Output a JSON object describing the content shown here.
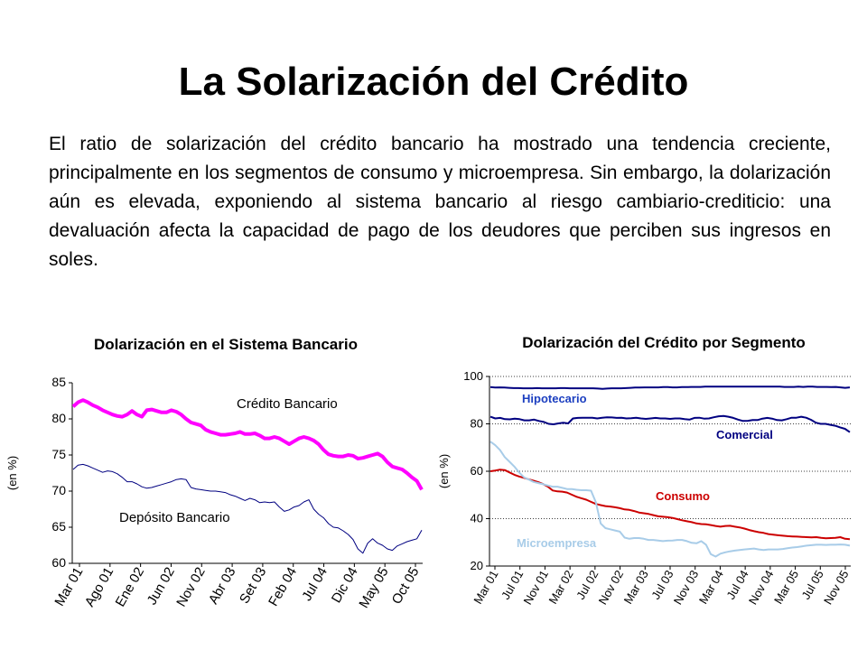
{
  "slide": {
    "title": "La Solarización del Crédito",
    "body": "El ratio de solarización del crédito bancario ha mostrado una tendencia creciente, principalmente en los segmentos de consumo y microempresa. Sin embargo, la dolarización aún es elevada, exponiendo al sistema bancario al riesgo cambiario-crediticio: una devaluación afecta la capacidad de pago de los deudores que perciben sus ingresos en soles."
  },
  "chart_data": [
    {
      "type": "line",
      "title": "Dolarización en el Sistema Bancario",
      "ylabel": "(en %)",
      "ylim": [
        60,
        85
      ],
      "yticks": [
        60,
        65,
        70,
        75,
        80,
        85
      ],
      "grid": false,
      "x_tick_labels": [
        "Mar 01",
        "Ago 01",
        "Ene 02",
        "Jun 02",
        "Nov 02",
        "Abr 03",
        "Set 03",
        "Feb 04",
        "Jul 04",
        "Dic 04",
        "May 05",
        "Oct 05"
      ],
      "series": [
        {
          "name": "Crédito Bancario",
          "color": "#ff00ff",
          "values": [
            81.7,
            82.3,
            82.6,
            82.3,
            81.9,
            81.6,
            81.2,
            80.9,
            80.6,
            80.4,
            80.3,
            80.6,
            81.1,
            80.6,
            80.3,
            81.2,
            81.3,
            81.1,
            80.9,
            80.9,
            81.2,
            81.0,
            80.6,
            80.0,
            79.5,
            79.3,
            79.1,
            78.5,
            78.2,
            78.0,
            77.8,
            77.8,
            77.9,
            78.0,
            78.2,
            77.9,
            77.9,
            78.0,
            77.7,
            77.3,
            77.3,
            77.5,
            77.3,
            76.9,
            76.5,
            76.9,
            77.3,
            77.5,
            77.3,
            77.0,
            76.5,
            75.7,
            75.1,
            74.9,
            74.8,
            74.8,
            75.0,
            74.9,
            74.5,
            74.6,
            74.8,
            75.0,
            75.2,
            74.8,
            74.0,
            73.4,
            73.2,
            73.0,
            72.5,
            71.9,
            71.4,
            70.2
          ],
          "label": "Crédito Bancario"
        },
        {
          "name": "Depósito Bancario",
          "color": "#000080",
          "values": [
            73.0,
            73.6,
            73.7,
            73.5,
            73.2,
            72.9,
            72.6,
            72.8,
            72.7,
            72.4,
            71.9,
            71.3,
            71.3,
            71.0,
            70.6,
            70.4,
            70.5,
            70.7,
            70.9,
            71.1,
            71.3,
            71.6,
            71.7,
            71.6,
            70.5,
            70.3,
            70.2,
            70.1,
            70.0,
            70.0,
            69.9,
            69.8,
            69.5,
            69.3,
            69.0,
            68.7,
            69.0,
            68.8,
            68.4,
            68.5,
            68.4,
            68.5,
            67.8,
            67.2,
            67.4,
            67.8,
            68.0,
            68.5,
            68.8,
            67.5,
            66.8,
            66.3,
            65.5,
            65.0,
            64.9,
            64.5,
            64.0,
            63.3,
            62.0,
            61.4,
            62.8,
            63.4,
            62.8,
            62.5,
            62.0,
            61.8,
            62.4,
            62.7,
            63.0,
            63.2,
            63.4,
            64.6
          ],
          "label": "Depósito Bancario"
        }
      ]
    },
    {
      "type": "line",
      "title": "Dolarización del Crédito por Segmento",
      "ylabel": "(en %)",
      "ylim": [
        20,
        100
      ],
      "yticks": [
        20,
        40,
        60,
        80,
        100
      ],
      "grid": true,
      "x_tick_labels": [
        "Mar 01",
        "Jul 01",
        "Nov 01",
        "Mar 02",
        "Jul 02",
        "Nov 02",
        "Mar 03",
        "Jul 03",
        "Nov 03",
        "Mar 04",
        "Jul 04",
        "Nov 04",
        "Mar 05",
        "Jul 05",
        "Nov 05"
      ],
      "series": [
        {
          "name": "Hipotecario",
          "color": "#000080",
          "values": [
            95.5,
            95.3,
            95.4,
            95.3,
            95.2,
            95.1,
            95.1,
            95.0,
            95.0,
            95.0,
            95.1,
            95.0,
            95.0,
            95.0,
            95.0,
            95.1,
            95.1,
            95.0,
            95.0,
            95.0,
            95.0,
            95.0,
            95.0,
            94.9,
            94.8,
            94.9,
            95.0,
            95.0,
            95.0,
            95.1,
            95.2,
            95.3,
            95.3,
            95.4,
            95.4,
            95.4,
            95.4,
            95.5,
            95.5,
            95.4,
            95.4,
            95.5,
            95.5,
            95.6,
            95.6,
            95.6,
            95.7,
            95.7,
            95.7,
            95.7,
            95.7,
            95.7,
            95.7,
            95.7,
            95.7,
            95.7,
            95.7,
            95.7,
            95.7,
            95.7,
            95.7,
            95.7,
            95.7,
            95.6,
            95.6,
            95.6,
            95.7,
            95.6,
            95.7,
            95.7,
            95.6,
            95.6,
            95.6,
            95.5,
            95.6,
            95.4,
            95.2,
            95.4
          ],
          "label": "Hipotecario"
        },
        {
          "name": "Comercial",
          "color": "#000080",
          "values": [
            83.0,
            82.3,
            82.5,
            82.0,
            81.9,
            82.2,
            82.0,
            81.5,
            81.5,
            81.8,
            81.2,
            80.8,
            80.0,
            79.8,
            80.2,
            80.5,
            80.2,
            82.3,
            82.5,
            82.6,
            82.6,
            82.6,
            82.3,
            82.6,
            82.8,
            82.7,
            82.5,
            82.6,
            82.3,
            82.4,
            82.6,
            82.3,
            82.1,
            82.3,
            82.5,
            82.3,
            82.3,
            82.1,
            82.3,
            82.3,
            82.0,
            81.8,
            82.5,
            82.6,
            82.2,
            82.3,
            82.8,
            83.2,
            83.3,
            83.0,
            82.5,
            81.8,
            81.2,
            81.3,
            81.6,
            81.6,
            82.2,
            82.5,
            82.2,
            81.6,
            81.5,
            82.0,
            82.6,
            82.6,
            83.0,
            82.6,
            81.7,
            80.5,
            80.0,
            80.0,
            79.6,
            79.2,
            78.5,
            77.9,
            76.5
          ],
          "label": "Comercial"
        },
        {
          "name": "Consumo",
          "color": "#cc0000",
          "values": [
            60.0,
            60.3,
            60.7,
            60.5,
            59.5,
            58.5,
            57.8,
            57.2,
            56.6,
            56.0,
            55.4,
            54.6,
            53.5,
            51.9,
            51.5,
            51.4,
            51.0,
            50.1,
            49.2,
            48.6,
            48.0,
            47.1,
            46.2,
            45.7,
            45.3,
            45.1,
            44.8,
            44.4,
            43.9,
            43.7,
            43.2,
            42.6,
            42.3,
            42.0,
            41.5,
            41.0,
            40.8,
            40.6,
            40.3,
            39.8,
            39.3,
            38.9,
            38.5,
            38.0,
            37.7,
            37.6,
            37.3,
            36.9,
            36.6,
            36.9,
            37.0,
            36.6,
            36.3,
            35.8,
            35.2,
            34.7,
            34.3,
            34.0,
            33.5,
            33.2,
            33.0,
            32.8,
            32.6,
            32.5,
            32.4,
            32.3,
            32.2,
            32.1,
            32.2,
            31.9,
            31.7,
            31.8,
            31.9,
            32.2,
            31.5,
            31.3
          ],
          "label": "Consumo"
        },
        {
          "name": "Microempresa",
          "color": "#a8cce8",
          "values": [
            72.5,
            71.0,
            69.0,
            66.0,
            64.0,
            62.0,
            59.5,
            57.5,
            56.5,
            55.5,
            55.0,
            54.5,
            54.0,
            53.5,
            53.5,
            53.0,
            52.5,
            52.5,
            52.2,
            52.0,
            52.0,
            51.8,
            47.0,
            38.0,
            36.0,
            35.5,
            35.0,
            34.5,
            32.0,
            31.5,
            31.8,
            31.8,
            31.5,
            31.0,
            31.0,
            30.8,
            30.5,
            30.7,
            30.8,
            31.0,
            31.0,
            30.5,
            29.8,
            29.6,
            30.5,
            29.0,
            25.0,
            24.0,
            25.2,
            25.8,
            26.2,
            26.5,
            26.8,
            27.0,
            27.2,
            27.4,
            27.0,
            26.8,
            27.0,
            27.0,
            27.0,
            27.2,
            27.5,
            27.8,
            28.0,
            28.3,
            28.6,
            28.8,
            29.0,
            29.0,
            28.9,
            29.0,
            29.0,
            29.1,
            29.0,
            28.6
          ],
          "label": "Microempresa"
        }
      ]
    }
  ]
}
